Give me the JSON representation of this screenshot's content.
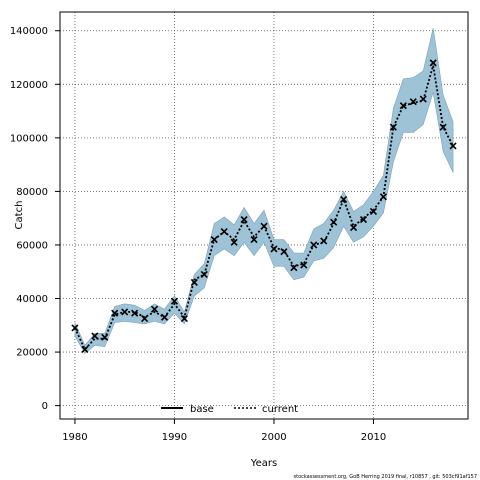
{
  "chart_data": {
    "type": "area",
    "xlabel": "Years",
    "ylabel": "Catch",
    "xlim": [
      1978.5,
      2019.5
    ],
    "ylim": [
      -5000,
      147000
    ],
    "grid": true,
    "x_ticks": [
      1980,
      1990,
      2000,
      2010
    ],
    "y_ticks": [
      0,
      20000,
      40000,
      60000,
      80000,
      100000,
      120000,
      140000
    ],
    "legend_placement": "bottom-center",
    "legend": [
      {
        "label": "base",
        "style": "solid"
      },
      {
        "label": "current",
        "style": "dotted"
      }
    ],
    "years": [
      1980,
      1981,
      1982,
      1983,
      1984,
      1985,
      1986,
      1987,
      1988,
      1989,
      1990,
      1991,
      1992,
      1993,
      1994,
      1995,
      1996,
      1997,
      1998,
      1999,
      2000,
      2001,
      2002,
      2003,
      2004,
      2005,
      2006,
      2007,
      2008,
      2009,
      2010,
      2011,
      2012,
      2013,
      2014,
      2015,
      2016,
      2017,
      2018
    ],
    "series": [
      {
        "name": "current",
        "values": [
          29000,
          21000,
          25000,
          25000,
          34000,
          35000,
          35000,
          33000,
          35000,
          33000,
          38000,
          33000,
          47000,
          49000,
          62000,
          65000,
          62000,
          69000,
          63000,
          67000,
          59000,
          58000,
          52000,
          53000,
          60000,
          61000,
          68000,
          77000,
          67000,
          70000,
          73000,
          78000,
          104000,
          112000,
          113000,
          114000,
          127000,
          104000,
          97000
        ],
        "lower": [
          26000,
          19500,
          22500,
          22000,
          31000,
          31500,
          31000,
          30500,
          31500,
          30500,
          34500,
          30500,
          41000,
          44000,
          56000,
          58500,
          56000,
          61000,
          56000,
          61000,
          52000,
          52000,
          47000,
          48000,
          54000,
          55000,
          59000,
          67000,
          61000,
          63000,
          67000,
          72000,
          91000,
          102000,
          102000,
          105000,
          117000,
          95000,
          87000
        ],
        "upper": [
          31000,
          22500,
          27000,
          27000,
          37000,
          38000,
          37500,
          35500,
          38000,
          36000,
          41000,
          35000,
          49000,
          53000,
          68000,
          70500,
          67500,
          74000,
          68000,
          73000,
          62000,
          62000,
          57000,
          57000,
          66000,
          68000,
          73000,
          80000,
          72500,
          75000,
          80000,
          86000,
          111000,
          122000,
          122500,
          125000,
          141000,
          116000,
          106000
        ],
        "marker_values": [
          29000,
          21000,
          26000,
          25500,
          34500,
          35000,
          34500,
          32500,
          36000,
          33000,
          39000,
          32500,
          46000,
          49000,
          62000,
          65000,
          61000,
          69500,
          62000,
          67000,
          58500,
          57500,
          51500,
          52500,
          60000,
          61500,
          68500,
          77000,
          66500,
          69500,
          72500,
          78000,
          104000,
          112000,
          113500,
          114500,
          128000,
          104000,
          97000
        ]
      }
    ],
    "band_color": "#9ec2d6",
    "band_edge_color": "#7aa3bb",
    "line_color": "#000000"
  },
  "footer": {
    "text": "stockassessment.org, GoB Herring 2019 final, r10857 , git: 503cf91af157"
  }
}
